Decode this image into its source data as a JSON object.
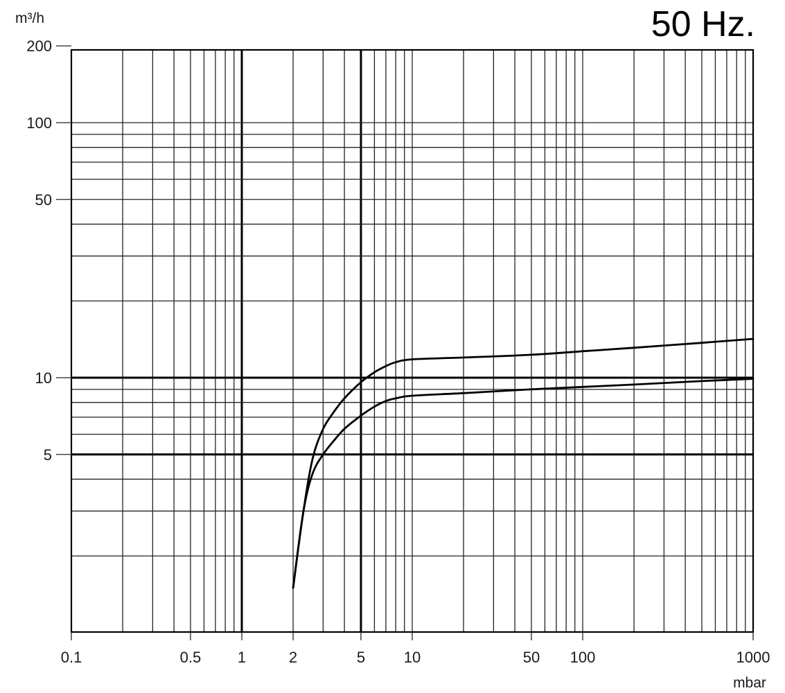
{
  "chart_data": {
    "type": "line",
    "title": "50 Hz.",
    "xlabel": "mbar",
    "ylabel": "m³/h",
    "x_scale": "log",
    "y_scale": "log",
    "xlim": [
      0.1,
      1000
    ],
    "ylim": [
      1.5,
      200
    ],
    "x_ticks": [
      {
        "value": 0.1,
        "label": "0.1"
      },
      {
        "value": 0.5,
        "label": "0.5"
      },
      {
        "value": 1,
        "label": "1"
      },
      {
        "value": 2,
        "label": "2"
      },
      {
        "value": 5,
        "label": "5"
      },
      {
        "value": 10,
        "label": "10"
      },
      {
        "value": 50,
        "label": "50"
      },
      {
        "value": 100,
        "label": "100"
      },
      {
        "value": 1000,
        "label": "1000"
      }
    ],
    "y_ticks": [
      {
        "value": 5,
        "label": "5"
      },
      {
        "value": 10,
        "label": "10"
      },
      {
        "value": 50,
        "label": "50"
      },
      {
        "value": 100,
        "label": "100"
      },
      {
        "value": 200,
        "label": "200"
      }
    ],
    "x_major_lines": [
      1,
      5
    ],
    "y_major_lines": [
      5,
      10
    ],
    "grid": true,
    "series": [
      {
        "points": [
          [
            2,
            1.5
          ],
          [
            2.3,
            3.0
          ],
          [
            2.6,
            4.8
          ],
          [
            3,
            6.3
          ],
          [
            3.5,
            7.4
          ],
          [
            4,
            8.3
          ],
          [
            5,
            9.6
          ],
          [
            6,
            10.5
          ],
          [
            7,
            11.1
          ],
          [
            8,
            11.5
          ],
          [
            10,
            11.8
          ],
          [
            20,
            12.0
          ],
          [
            50,
            12.3
          ],
          [
            100,
            12.7
          ],
          [
            200,
            13.1
          ],
          [
            500,
            13.7
          ],
          [
            1000,
            14.2
          ]
        ]
      },
      {
        "points": [
          [
            2,
            1.5
          ],
          [
            2.3,
            3.0
          ],
          [
            2.6,
            4.2
          ],
          [
            3,
            5.0
          ],
          [
            3.5,
            5.7
          ],
          [
            4,
            6.3
          ],
          [
            5,
            7.1
          ],
          [
            6,
            7.7
          ],
          [
            7,
            8.1
          ],
          [
            8,
            8.3
          ],
          [
            10,
            8.5
          ],
          [
            20,
            8.7
          ],
          [
            50,
            9.0
          ],
          [
            100,
            9.2
          ],
          [
            200,
            9.4
          ],
          [
            500,
            9.7
          ],
          [
            1000,
            9.9
          ]
        ]
      }
    ]
  }
}
